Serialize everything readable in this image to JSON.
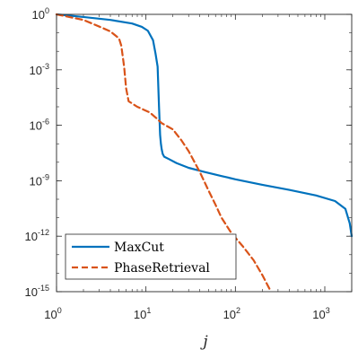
{
  "chart_data": {
    "type": "line",
    "xscale": "log",
    "yscale": "log",
    "xlim": [
      1,
      2000
    ],
    "ylim": [
      1e-15,
      1
    ],
    "xlabel": "j",
    "ylabel": "",
    "title": "",
    "x_ticks": [
      {
        "base": "10",
        "exp": "0",
        "value": 1
      },
      {
        "base": "10",
        "exp": "1",
        "value": 10
      },
      {
        "base": "10",
        "exp": "2",
        "value": 100
      },
      {
        "base": "10",
        "exp": "3",
        "value": 1000
      }
    ],
    "y_ticks": [
      {
        "base": "10",
        "exp": "0",
        "value": 1
      },
      {
        "base": "10",
        "exp": "-3",
        "value": 0.001
      },
      {
        "base": "10",
        "exp": "-6",
        "value": 1e-06
      },
      {
        "base": "10",
        "exp": "-9",
        "value": 1e-09
      },
      {
        "base": "10",
        "exp": "-12",
        "value": 1e-12
      },
      {
        "base": "10",
        "exp": "-15",
        "value": 1e-15
      }
    ],
    "legend_position": "bottom-left",
    "grid": false,
    "series": [
      {
        "name": "MaxCut",
        "color": "#0072BD",
        "style": "solid",
        "x": [
          1,
          2,
          4,
          7,
          9,
          10.5,
          12,
          12.8,
          13.5,
          14,
          14.4,
          14.7,
          15,
          15.4,
          16,
          18,
          22,
          30,
          45,
          70,
          100,
          200,
          400,
          800,
          1300,
          1700,
          1900,
          2000
        ],
        "y": [
          1,
          0.72,
          0.5,
          0.32,
          0.21,
          0.13,
          0.04,
          0.0075,
          0.0015,
          1e-05,
          3e-07,
          1e-07,
          5e-08,
          2.8e-08,
          2e-08,
          1.5e-08,
          9e-09,
          5e-09,
          3e-09,
          1.8e-09,
          1.2e-09,
          6e-10,
          3.2e-10,
          1.6e-10,
          8e-11,
          3e-11,
          5e-12,
          1e-12
        ]
      },
      {
        "name": "PhaseRetrieval",
        "color": "#D95319",
        "style": "dashed",
        "x": [
          1,
          2,
          3,
          4,
          5,
          5.3,
          5.7,
          6,
          6.4,
          8,
          11,
          13,
          15,
          20,
          25,
          30,
          40,
          50,
          60,
          70,
          90,
          120,
          160,
          200,
          250
        ],
        "y": [
          1,
          0.5,
          0.22,
          0.12,
          0.05,
          0.02,
          0.0015,
          0.0001,
          2e-05,
          1e-05,
          5e-06,
          2.5e-06,
          1.3e-06,
          6e-07,
          1.5e-07,
          4e-08,
          3e-09,
          3e-10,
          5e-11,
          1e-11,
          1.5e-12,
          3e-13,
          5e-14,
          8e-15,
          1e-15
        ]
      }
    ]
  }
}
